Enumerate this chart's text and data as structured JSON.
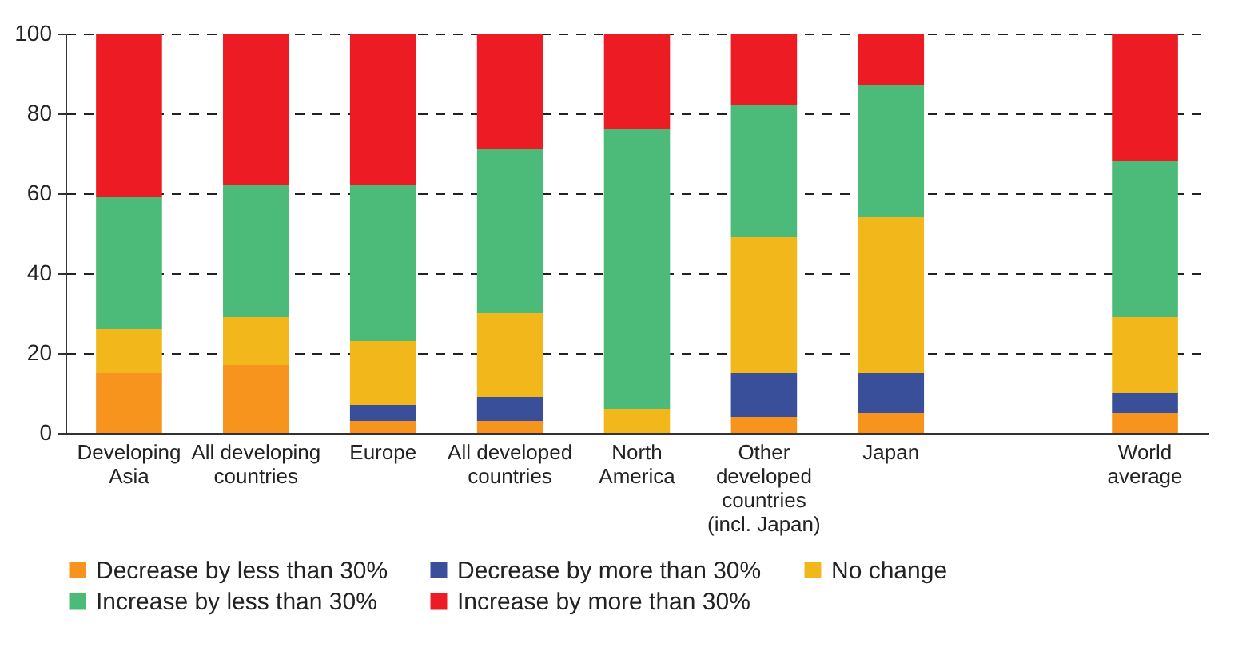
{
  "chart_data": {
    "type": "bar",
    "stacked": true,
    "categories": [
      "Developing Asia",
      "All developing countries",
      "Europe",
      "All developed countries",
      "North America",
      "Other developed countries (incl. Japan)",
      "Japan",
      null,
      "World average"
    ],
    "series": [
      {
        "name": "Decrease by less than 30%",
        "color": "#f7941d",
        "values": [
          15,
          17,
          3,
          3,
          0,
          4,
          5,
          null,
          5
        ]
      },
      {
        "name": "Decrease by more than 30%",
        "color": "#3a4f9a",
        "values": [
          0,
          0,
          4,
          6,
          0,
          11,
          10,
          null,
          5
        ]
      },
      {
        "name": "No change",
        "color": "#f2b71a",
        "values": [
          11,
          12,
          16,
          21,
          6,
          34,
          39,
          null,
          19
        ]
      },
      {
        "name": "Increase by less than 30%",
        "color": "#4cbb7a",
        "values": [
          33,
          33,
          39,
          41,
          70,
          33,
          33,
          null,
          39
        ]
      },
      {
        "name": "Increase by more than 30%",
        "color": "#ed1c24",
        "values": [
          41,
          38,
          38,
          29,
          24,
          18,
          13,
          null,
          32
        ]
      }
    ],
    "ylim": [
      0,
      100
    ],
    "yticks": [
      0,
      20,
      40,
      60,
      80,
      100
    ],
    "grid": "y",
    "legend": "bottom"
  }
}
